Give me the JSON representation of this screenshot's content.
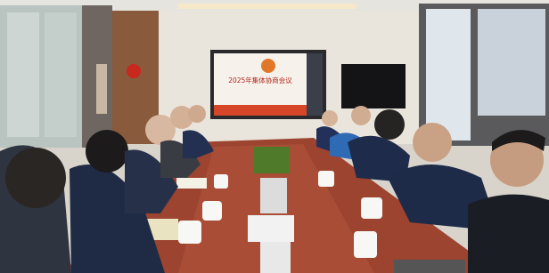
{
  "screen": {
    "title": "2025年集体协商会议"
  }
}
